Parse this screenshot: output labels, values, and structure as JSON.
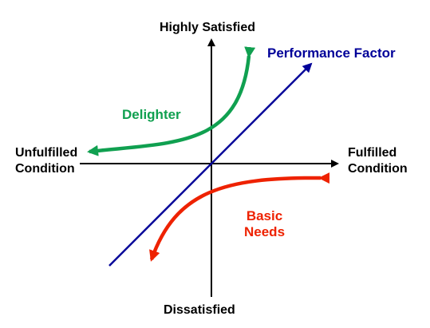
{
  "axes": {
    "top_label": "Highly Satisfied",
    "bottom_label": "Dissatisfied",
    "left_label_line1": "Unfulfilled",
    "left_label_line2": "Condition",
    "right_label_line1": "Fulfilled",
    "right_label_line2": "Condition"
  },
  "curves": {
    "performance": {
      "label": "Performance Factor",
      "color": "#000099"
    },
    "delighter": {
      "label": "Delighter",
      "color": "#10a050"
    },
    "basic": {
      "label_line1": "Basic",
      "label_line2": "Needs",
      "color": "#ee2200"
    }
  }
}
